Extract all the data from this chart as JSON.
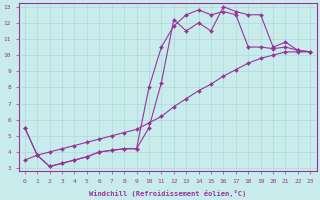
{
  "background_color": "#c8ecec",
  "grid_color": "#b0d8d8",
  "line_color": "#993399",
  "xlabel": "Windchill (Refroidissement éolien,°C)",
  "xlim": [
    -0.5,
    23.5
  ],
  "ylim": [
    2.8,
    13.2
  ],
  "xticks": [
    0,
    1,
    2,
    3,
    4,
    5,
    6,
    7,
    8,
    9,
    10,
    11,
    12,
    13,
    14,
    15,
    16,
    17,
    18,
    19,
    20,
    21,
    22,
    23
  ],
  "yticks": [
    3,
    4,
    5,
    6,
    7,
    8,
    9,
    10,
    11,
    12,
    13
  ],
  "line1_x": [
    0,
    1,
    2,
    3,
    4,
    5,
    6,
    7,
    8,
    9,
    10,
    11,
    12,
    13,
    14,
    15,
    16,
    17,
    18,
    19,
    20,
    21,
    22,
    23
  ],
  "line1_y": [
    5.5,
    3.8,
    3.1,
    3.3,
    3.5,
    3.7,
    4.0,
    4.1,
    4.2,
    4.2,
    5.5,
    8.3,
    12.2,
    11.5,
    12.0,
    11.5,
    13.0,
    12.7,
    12.5,
    12.5,
    10.5,
    10.8,
    10.3,
    10.2
  ],
  "line2_x": [
    0,
    1,
    2,
    3,
    4,
    5,
    6,
    7,
    8,
    9,
    10,
    11,
    12,
    13,
    14,
    15,
    16,
    17,
    18,
    19,
    20,
    21,
    22,
    23
  ],
  "line2_y": [
    3.5,
    3.8,
    4.0,
    4.2,
    4.4,
    4.6,
    4.8,
    5.0,
    5.2,
    5.4,
    5.8,
    6.2,
    6.8,
    7.3,
    7.8,
    8.2,
    8.7,
    9.1,
    9.5,
    9.8,
    10.0,
    10.2,
    10.2,
    10.2
  ],
  "line3_x": [
    0,
    1,
    2,
    3,
    4,
    5,
    6,
    7,
    8,
    9,
    10,
    11,
    12,
    13,
    14,
    15,
    16,
    17,
    18,
    19,
    20,
    21,
    22,
    23
  ],
  "line3_y": [
    5.5,
    3.8,
    3.1,
    3.3,
    3.5,
    3.7,
    4.0,
    4.1,
    4.2,
    4.2,
    8.0,
    10.5,
    11.8,
    12.5,
    12.8,
    12.5,
    12.7,
    12.5,
    10.5,
    10.5,
    10.4,
    10.5,
    10.3,
    10.2
  ]
}
